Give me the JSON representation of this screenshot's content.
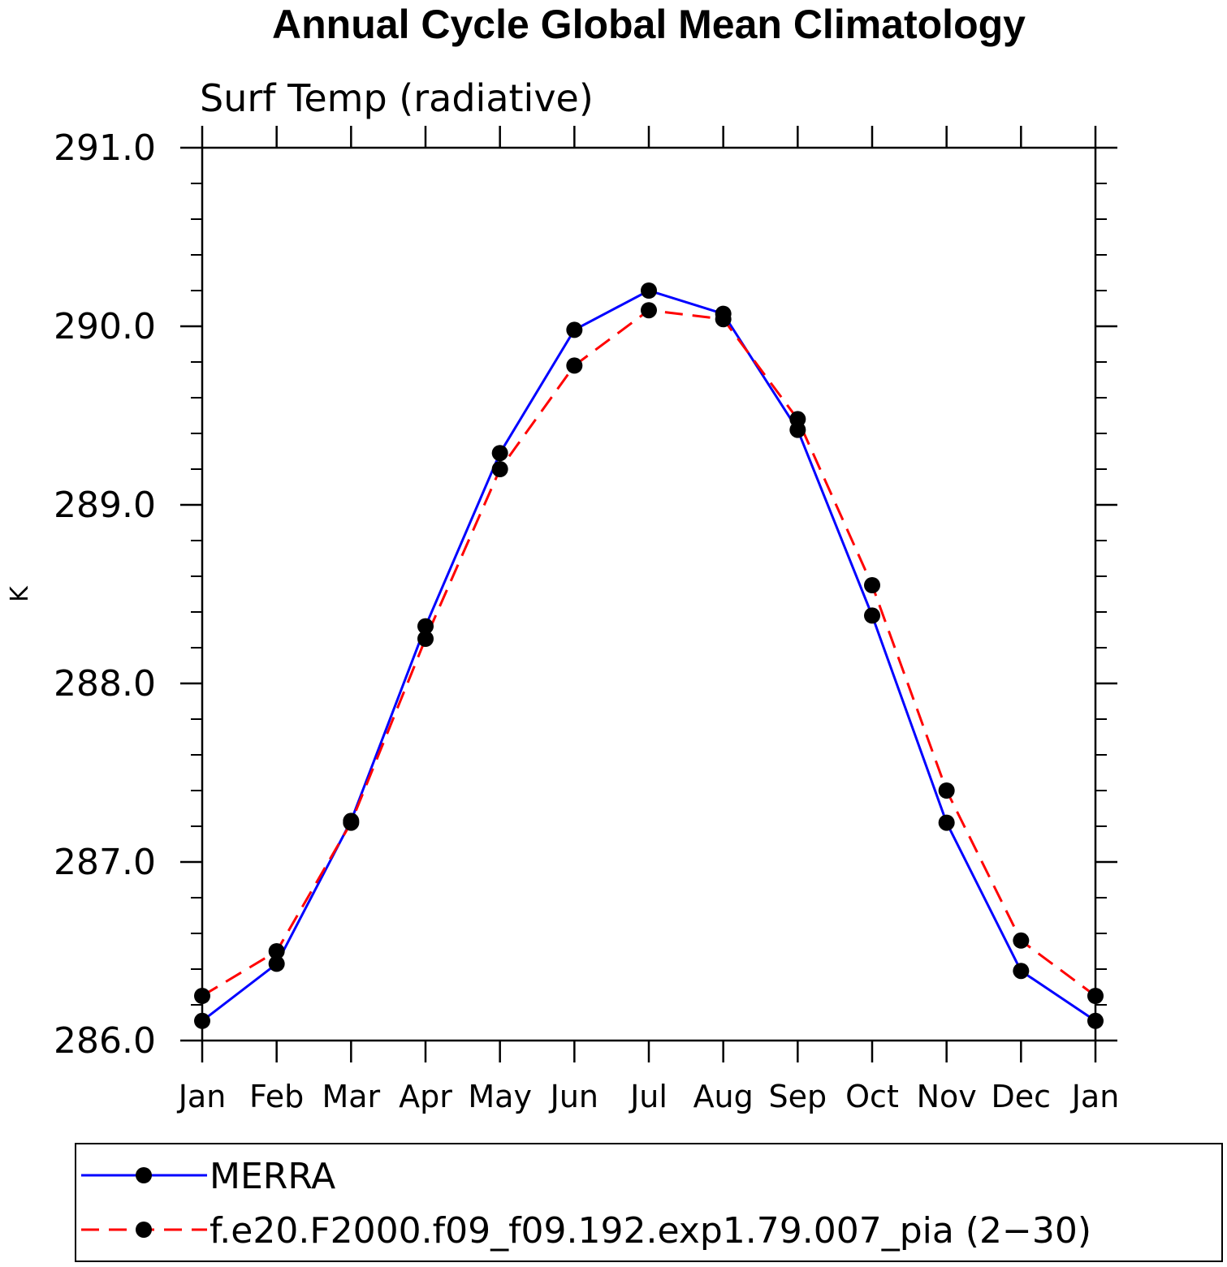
{
  "chart_data": {
    "type": "line",
    "title": "Annual Cycle Global Mean Climatology",
    "subtitle": "Surf Temp (radiative)",
    "ylabel": "K",
    "ylim": [
      286.0,
      291.0
    ],
    "yticks": [
      "291.0",
      "290.0",
      "289.0",
      "288.0",
      "287.0",
      "286.0"
    ],
    "categories": [
      "Jan",
      "Feb",
      "Mar",
      "Apr",
      "May",
      "Jun",
      "Jul",
      "Aug",
      "Sep",
      "Oct",
      "Nov",
      "Dec",
      "Jan"
    ],
    "series": [
      {
        "name": "MERRA",
        "color": "#0000ff",
        "dash": "solid",
        "values": [
          286.11,
          286.43,
          287.23,
          288.32,
          289.29,
          289.98,
          290.2,
          290.07,
          289.42,
          288.38,
          287.22,
          286.39,
          286.11
        ]
      },
      {
        "name": "f.e20.F2000.f09_f09.192.exp1.79.007_pia (2−30)",
        "color": "#ff0000",
        "dash": "dashed",
        "values": [
          286.25,
          286.5,
          287.22,
          288.25,
          289.2,
          289.78,
          290.09,
          290.04,
          289.48,
          288.55,
          287.4,
          286.56,
          286.25
        ]
      }
    ],
    "legend_position": "bottom",
    "grid": false
  }
}
